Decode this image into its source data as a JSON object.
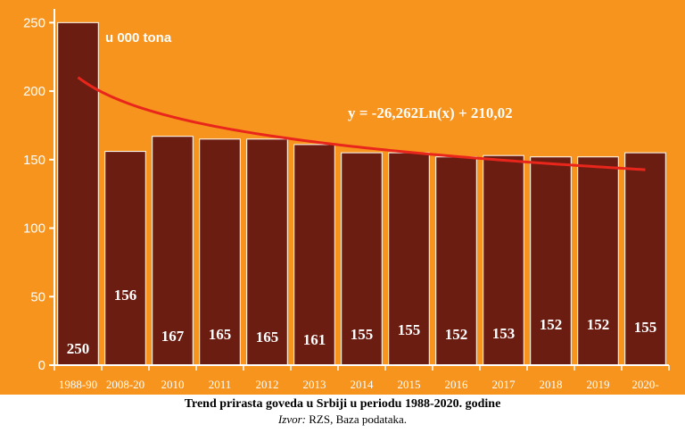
{
  "chart_data": {
    "type": "bar",
    "categories": [
      "1988-90",
      "2008-20",
      "2010",
      "2011",
      "2012",
      "2013",
      "2014",
      "2015",
      "2016",
      "2017",
      "2018",
      "2019",
      "2020-"
    ],
    "values": [
      250,
      156,
      167,
      165,
      165,
      161,
      155,
      155,
      152,
      153,
      152,
      152,
      155
    ],
    "data_labels": [
      "250",
      "156",
      "167",
      "165",
      "165",
      "161",
      "155",
      "155",
      "152",
      "153",
      "152",
      "152",
      "155"
    ],
    "ylim": [
      0,
      260
    ],
    "yticks": [
      0,
      50,
      100,
      150,
      200,
      250
    ],
    "unit_label": "u 000 tona",
    "trendline": {
      "type": "logarithmic",
      "a": -26.262,
      "b": 210.02,
      "equation": "y = -26,262Ln(x) + 210,02"
    },
    "colors": {
      "background": "#f7941d",
      "bar": "#6b1d12",
      "bar_stroke": "#ffffff",
      "trend": "#e8261b",
      "text": "#ffffff"
    },
    "grid": false
  },
  "caption": {
    "title": "Trend prirasta goveda u Srbiji u periodu 1988-2020. godine",
    "source_label": "Izvor:",
    "source_text": "RZS, Baza podataka."
  }
}
